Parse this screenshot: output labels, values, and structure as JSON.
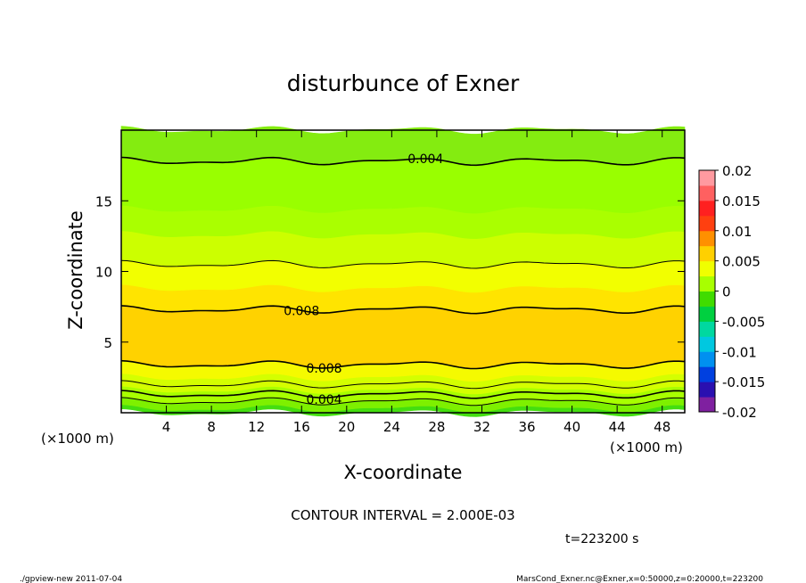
{
  "chart_data": {
    "type": "heatmap",
    "title": "disturbunce of Exner",
    "xlabel": "X-coordinate",
    "ylabel": "Z-coordinate",
    "x_unit_left": "(×1000 m)",
    "x_unit_right": "(×1000 m)",
    "xlim": [
      0,
      50
    ],
    "ylim": [
      0,
      20
    ],
    "x_ticks": [
      4,
      8,
      12,
      16,
      20,
      24,
      28,
      32,
      36,
      40,
      44,
      48
    ],
    "y_ticks": [
      5,
      10,
      15
    ],
    "contour_interval_text": "CONTOUR INTERVAL = 2.000E-03",
    "time_text": "t=223200 s",
    "footer_left": "./gpview-new  2011-07-04",
    "footer_right": "MarsCond_Exner.nc@Exner,x=0:50000,z=0:20000,t=223200",
    "colorbar": {
      "min": -0.02,
      "max": 0.02,
      "tick_labels": [
        "0.02",
        "0.015",
        "0.01",
        "0.005",
        "0",
        "-0.005",
        "-0.01",
        "-0.015",
        "-0.02"
      ],
      "colors": [
        "#7f20a0",
        "#2a10b0",
        "#0040e0",
        "#0090f0",
        "#00c8e0",
        "#00d8a0",
        "#00d040",
        "#40dc00",
        "#a8ff00",
        "#f0ff00",
        "#ffd000",
        "#ff9000",
        "#ff4010",
        "#ff2020",
        "#ff6060",
        "#ff9aa0"
      ]
    },
    "contour_labels": [
      {
        "text": "0.004",
        "x": 27,
        "z": 17.8
      },
      {
        "text": "0.008",
        "x": 16,
        "z": 7.3
      },
      {
        "text": "0.008",
        "x": 18,
        "z": 3.4
      },
      {
        "text": "0.004",
        "x": 18,
        "z": 1.2
      }
    ],
    "bands": [
      {
        "z0": 0.0,
        "z1": 0.3,
        "color": "#44de10"
      },
      {
        "z0": 0.3,
        "z1": 0.8,
        "color": "#7ef000"
      },
      {
        "z0": 0.8,
        "z1": 1.6,
        "color": "#a8ff00"
      },
      {
        "z0": 1.6,
        "z1": 2.5,
        "color": "#d4ff00"
      },
      {
        "z0": 2.5,
        "z1": 3.4,
        "color": "#f5fa00"
      },
      {
        "z0": 3.4,
        "z1": 7.3,
        "color": "#ffd200"
      },
      {
        "z0": 7.3,
        "z1": 8.8,
        "color": "#ffe400"
      },
      {
        "z0": 8.8,
        "z1": 10.5,
        "color": "#f2ff00"
      },
      {
        "z0": 10.5,
        "z1": 12.6,
        "color": "#ccff00"
      },
      {
        "z0": 12.6,
        "z1": 14.4,
        "color": "#aaff00"
      },
      {
        "z0": 14.4,
        "z1": 17.8,
        "color": "#99ff00"
      },
      {
        "z0": 17.8,
        "z1": 20.0,
        "color": "#84ec10"
      }
    ],
    "contour_lines": [
      {
        "z": 0.8,
        "width": 1
      },
      {
        "z": 1.3,
        "width": 1.6
      },
      {
        "z": 2.0,
        "width": 1
      },
      {
        "z": 3.4,
        "width": 1.6
      },
      {
        "z": 7.3,
        "width": 1.6
      },
      {
        "z": 10.5,
        "width": 1
      },
      {
        "z": 17.8,
        "width": 1.6
      }
    ]
  }
}
